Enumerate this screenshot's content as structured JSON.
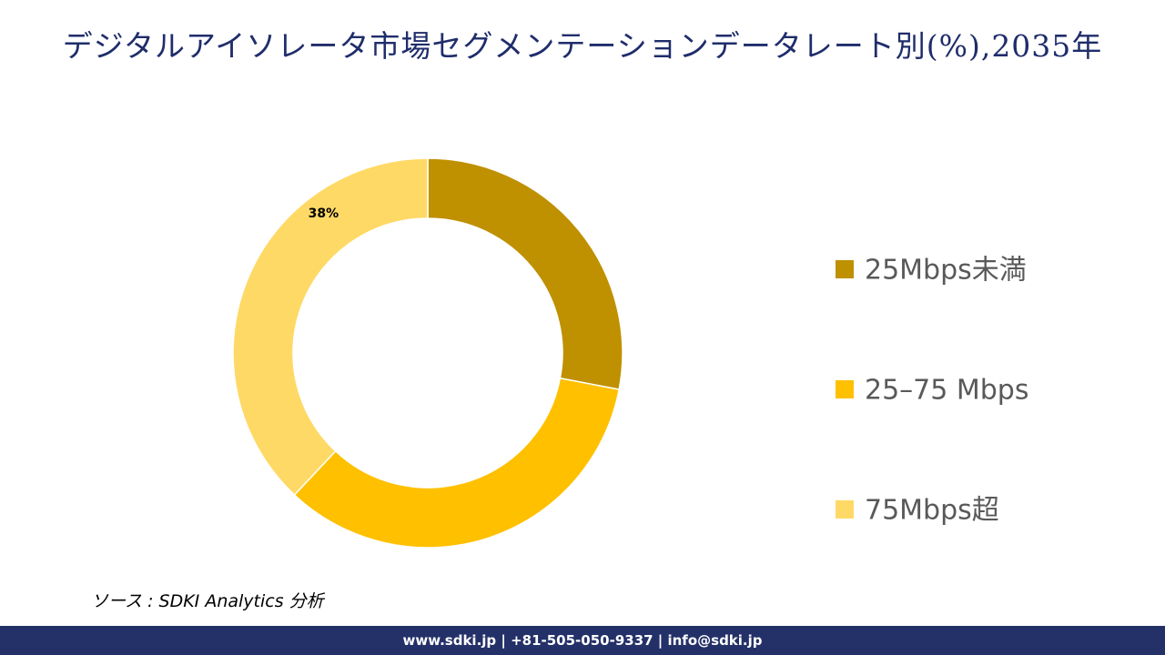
{
  "chart_data": {
    "type": "donut",
    "title": "デジタルアイソレータ市場セグメンテーションデータレート別(%),2035年",
    "categories": [
      "25Mbps未満",
      "25–75 Mbps",
      "75Mbps超"
    ],
    "values": [
      28,
      34,
      38
    ],
    "value_labels": [
      null,
      null,
      "38%"
    ],
    "colors": [
      "#bf9000",
      "#ffc000",
      "#ffd966"
    ],
    "legend": "right"
  },
  "source": "ソース : SDKI Analytics 分析",
  "footer": "www.sdki.jp | +81-505-050-9337 | info@sdki.jp"
}
